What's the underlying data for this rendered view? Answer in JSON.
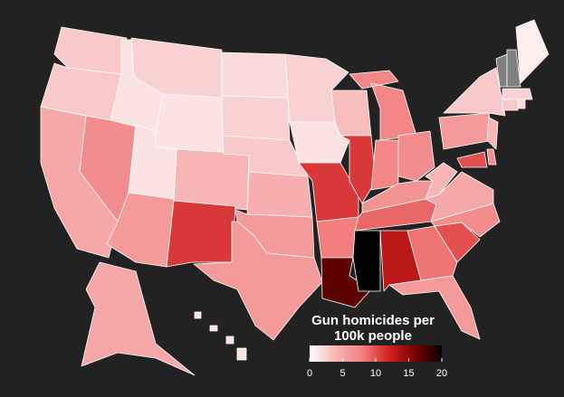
{
  "chart_data": {
    "type": "choropleth",
    "legend_title": [
      "Gun homicides per",
      "100k people"
    ],
    "values": [
      3,
      3,
      5,
      7,
      1.5,
      2.5,
      1.5,
      1.5,
      4,
      6,
      11,
      2,
      2.5,
      3,
      4.5,
      6,
      6,
      2.5,
      1.5,
      11,
      8,
      17,
      3.5,
      11,
      7.5,
      7.5,
      7,
      6.5,
      9,
      20,
      13,
      8.5,
      6,
      10,
      7,
      5,
      4,
      6,
      3,
      null,
      null,
      1,
      2.5,
      3,
      2,
      4,
      10,
      7,
      5,
      1.5
    ],
    "colors": [
      "#ffffff",
      "#f7b5b5",
      "#f27f7f",
      "#d22020",
      "#7a0000",
      "#000000"
    ],
    "missing_color": "#808080",
    "xlim": [
      0,
      20
    ],
    "xticks": [
      0,
      5,
      10,
      15,
      20
    ]
  }
}
